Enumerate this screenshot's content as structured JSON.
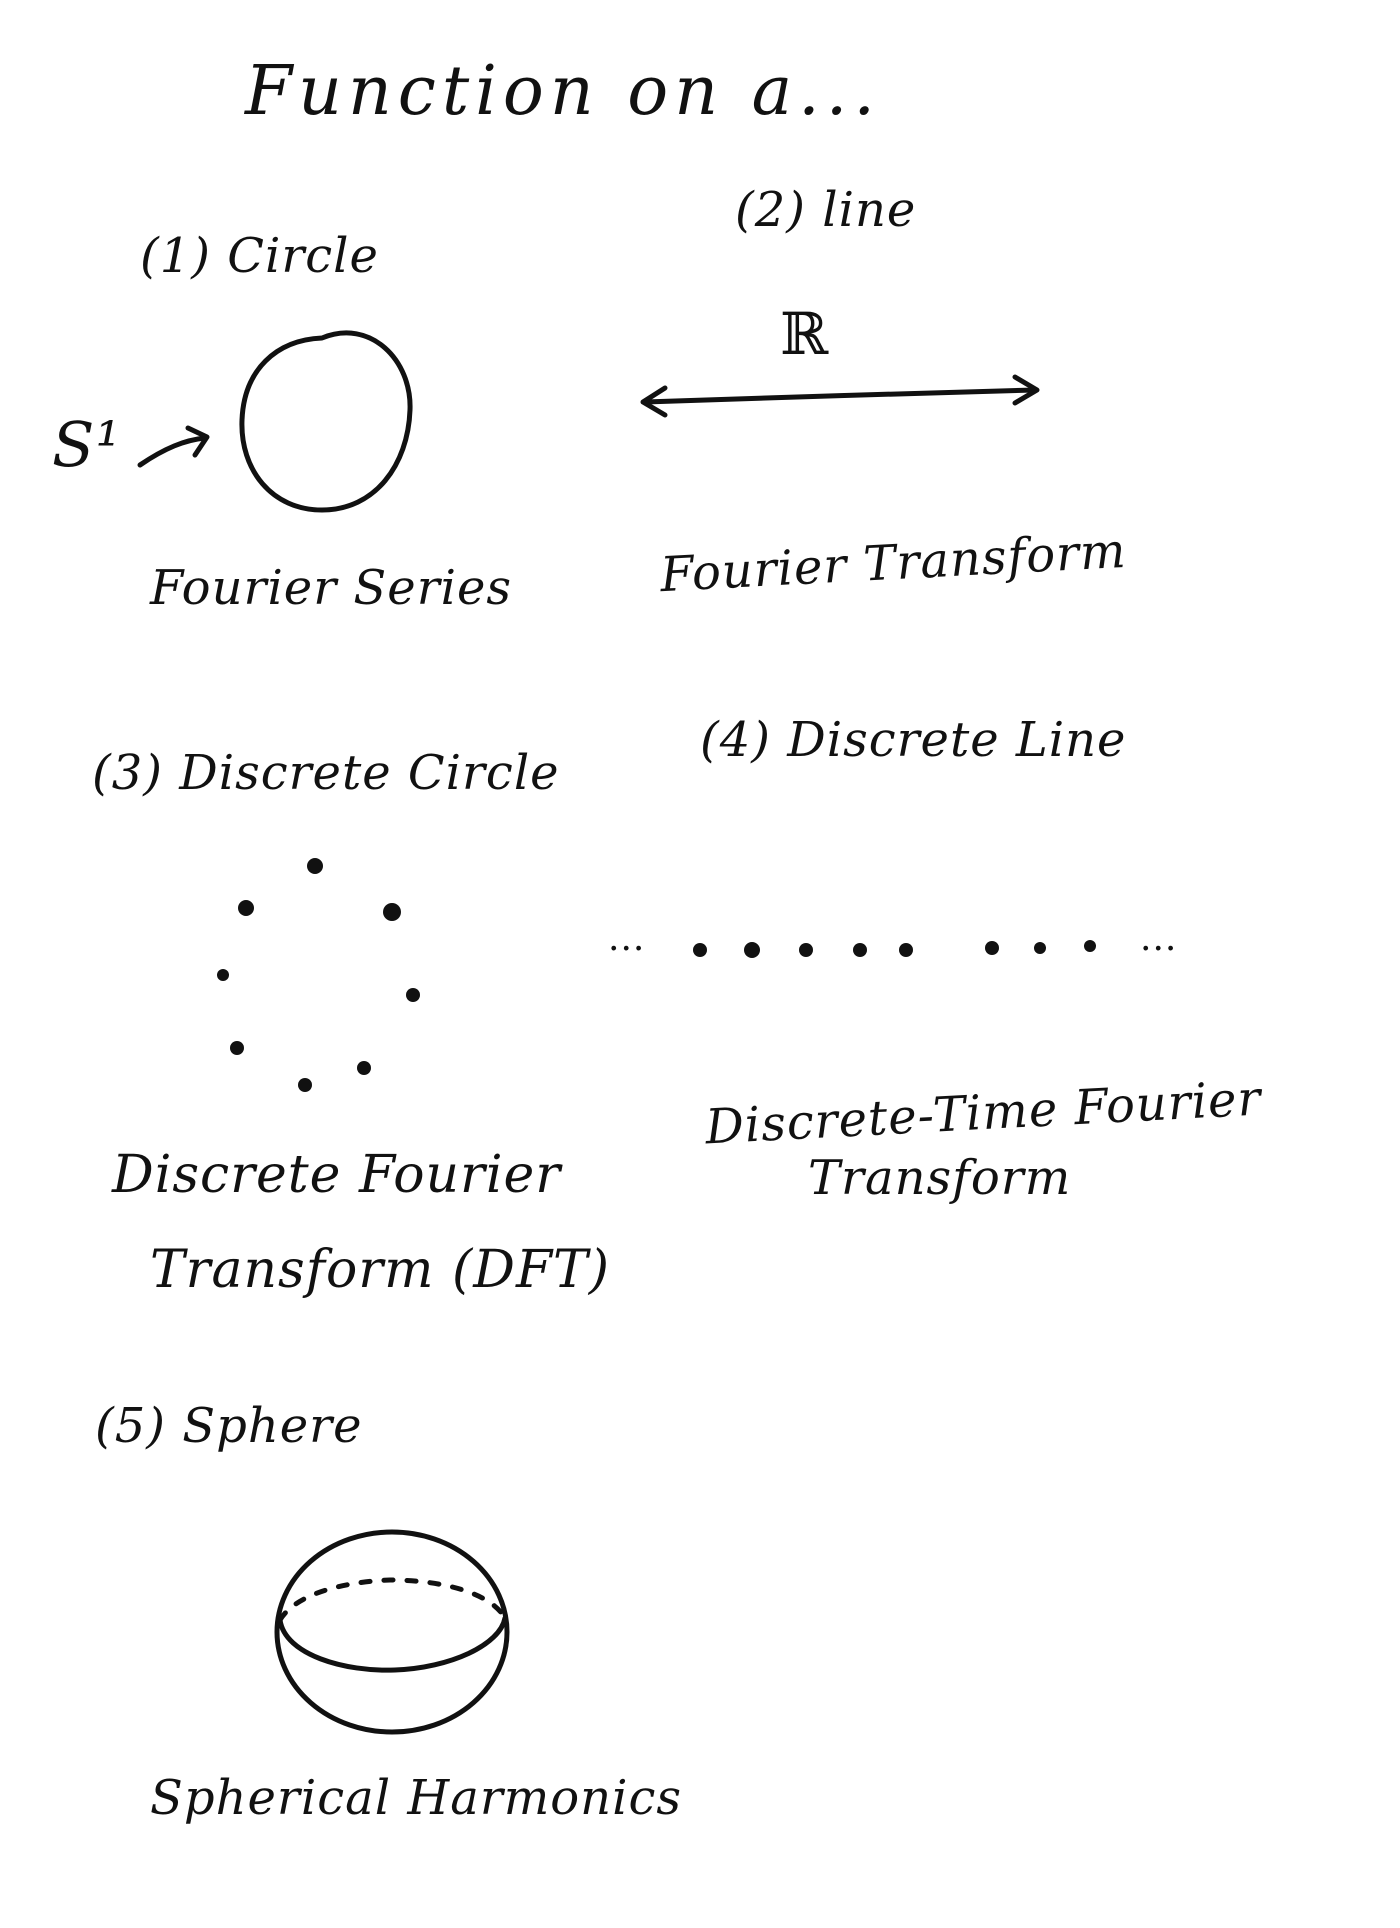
{
  "title": "Function on a...",
  "sections": [
    {
      "heading": "(1) Circle",
      "symbol": "S¹",
      "caption": "Fourier Series"
    },
    {
      "heading": "(2) line",
      "symbol": "ℝ",
      "caption": "Fourier Transform"
    },
    {
      "heading": "(3) Discrete Circle",
      "caption_lines": [
        "Discrete Fourier",
        "Transform (DFT)"
      ]
    },
    {
      "heading": "(4) Discrete Line",
      "dots_left": "...",
      "dots_right": "...",
      "caption_lines": [
        "Discrete-Time Fourier",
        "Transform"
      ]
    },
    {
      "heading": "(5) Sphere",
      "caption": "Spherical Harmonics"
    }
  ]
}
